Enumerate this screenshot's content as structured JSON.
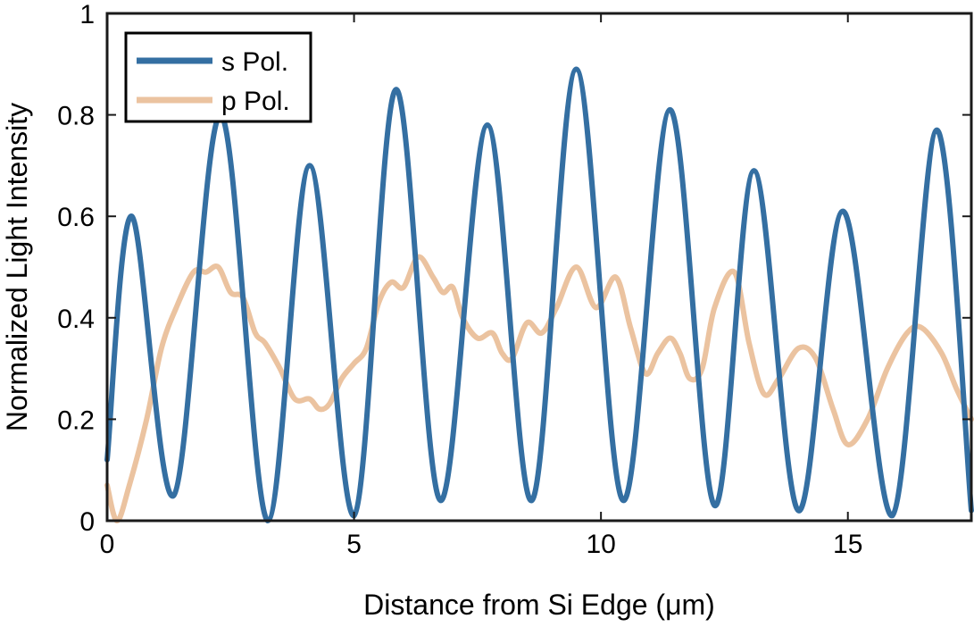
{
  "chart_data": {
    "type": "line",
    "title": "",
    "xlabel": "Distance from Si Edge (μm)",
    "ylabel": "Normalized Light Intensity",
    "xlim": [
      0,
      17.5
    ],
    "ylim": [
      0,
      1
    ],
    "xticks": [
      0,
      5,
      10,
      15
    ],
    "xtick_labels": [
      "0",
      "5",
      "10",
      "15"
    ],
    "yticks": [
      0,
      0.2,
      0.4,
      0.6,
      0.8,
      1
    ],
    "ytick_labels": [
      "0",
      "0.2",
      "0.4",
      "0.6",
      "0.8",
      "1"
    ],
    "grid": false,
    "legend_position": "top-left",
    "series": [
      {
        "name": "s Pol.",
        "color": "#346fa2",
        "x": [
          0,
          0.5,
          1.35,
          2.3,
          3.25,
          4.1,
          5.0,
          5.85,
          6.75,
          7.7,
          8.6,
          9.5,
          10.45,
          11.4,
          12.3,
          13.1,
          14.0,
          14.9,
          15.9,
          16.8,
          17.5
        ],
        "y": [
          0.12,
          0.6,
          0.05,
          0.8,
          0.0,
          0.7,
          0.01,
          0.85,
          0.04,
          0.78,
          0.04,
          0.89,
          0.04,
          0.81,
          0.03,
          0.69,
          0.02,
          0.61,
          0.01,
          0.77,
          0.02
        ]
      },
      {
        "name": "p Pol.",
        "color": "#ebc3a0",
        "x": [
          0,
          0.2,
          0.45,
          0.8,
          1.1,
          1.4,
          1.75,
          2.0,
          2.25,
          2.5,
          2.75,
          3.0,
          3.2,
          3.5,
          3.8,
          4.1,
          4.3,
          4.5,
          4.75,
          5.0,
          5.25,
          5.5,
          5.75,
          6.0,
          6.3,
          6.6,
          6.8,
          7.0,
          7.2,
          7.5,
          7.8,
          8.0,
          8.2,
          8.5,
          8.8,
          9.1,
          9.5,
          9.9,
          10.3,
          10.6,
          10.9,
          11.15,
          11.4,
          11.6,
          11.8,
          12.05,
          12.3,
          12.7,
          13.0,
          13.3,
          13.6,
          14.0,
          14.35,
          14.7,
          15.0,
          15.4,
          15.8,
          16.2,
          16.5,
          16.9,
          17.2,
          17.5
        ],
        "y": [
          0.07,
          0.0,
          0.07,
          0.2,
          0.34,
          0.42,
          0.49,
          0.49,
          0.5,
          0.45,
          0.44,
          0.37,
          0.35,
          0.3,
          0.24,
          0.24,
          0.22,
          0.23,
          0.28,
          0.31,
          0.34,
          0.43,
          0.47,
          0.46,
          0.52,
          0.48,
          0.45,
          0.46,
          0.4,
          0.36,
          0.37,
          0.33,
          0.32,
          0.39,
          0.37,
          0.42,
          0.5,
          0.42,
          0.48,
          0.38,
          0.29,
          0.33,
          0.36,
          0.33,
          0.28,
          0.3,
          0.42,
          0.49,
          0.35,
          0.25,
          0.28,
          0.34,
          0.32,
          0.22,
          0.15,
          0.2,
          0.3,
          0.37,
          0.38,
          0.33,
          0.26,
          0.2
        ]
      }
    ]
  }
}
